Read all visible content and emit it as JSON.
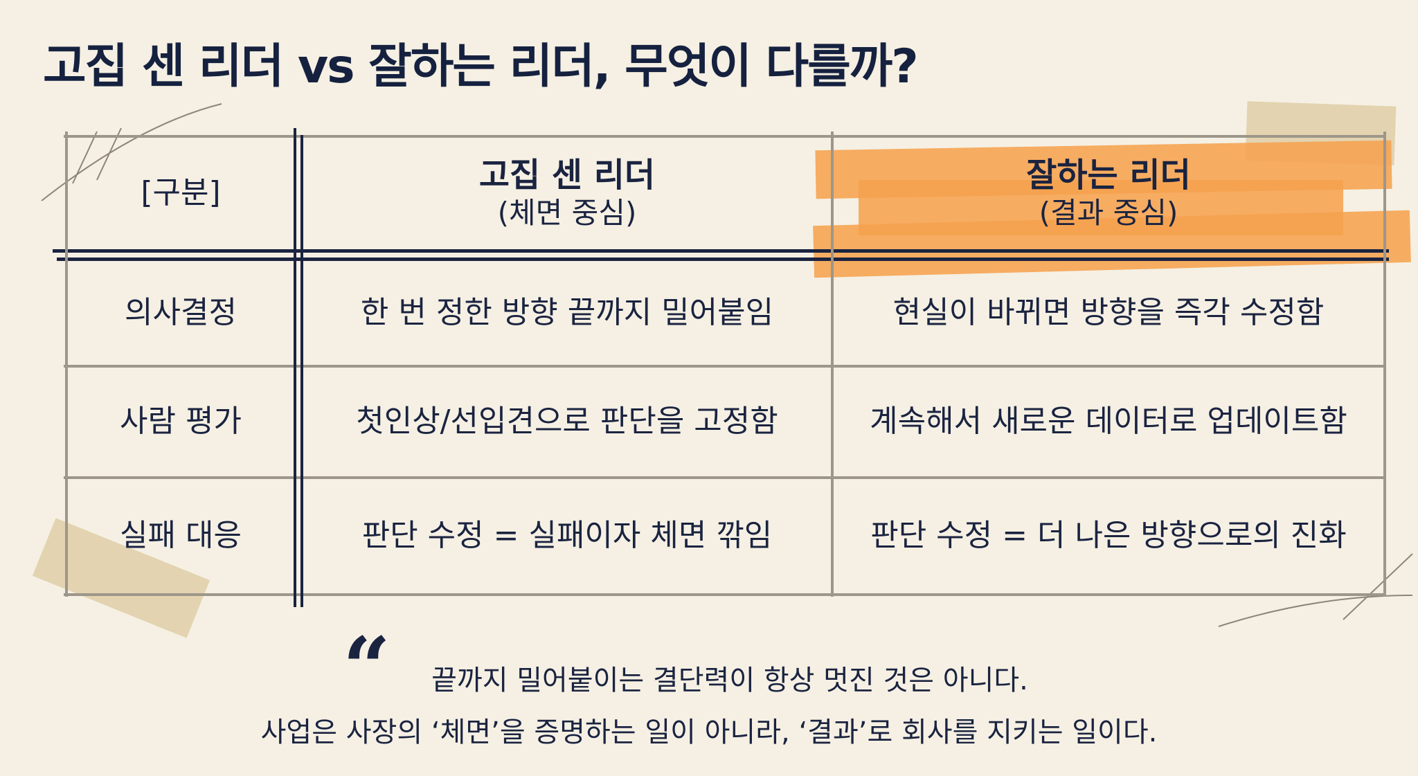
{
  "title": "고집 센 리더 vs 잘하는 리더, 무엇이 다를까?",
  "colors": {
    "background": "#f5f0e3",
    "text": "#1a2340",
    "highlight": "#f6a24e",
    "grid": "#9d968a",
    "tape": "#dcc69a"
  },
  "table": {
    "header": {
      "category": "[구분]",
      "col1_title": "고집 센 리더",
      "col1_sub": "(체면 중심)",
      "col2_title": "잘하는 리더",
      "col2_sub": "(결과 중심)"
    },
    "rows": [
      {
        "label": "의사결정",
        "stubborn": "한 번 정한 방향 끝까지 밀어붙임",
        "good": "현실이 바뀌면 방향을 즉각 수정함"
      },
      {
        "label": "사람 평가",
        "stubborn": "첫인상/선입견으로 판단을 고정함",
        "good": "계속해서 새로운 데이터로 업데이트함"
      },
      {
        "label": "실패 대응",
        "stubborn": "판단 수정 = 실패이자 체면 깎임",
        "good": "판단 수정 = 더 나은 방향으로의 진화"
      }
    ]
  },
  "quote": {
    "icon": "quote-mark-icon",
    "line1": "끝까지 밀어붙이는 결단력이 항상 멋진 것은 아니다.",
    "line2": "사업은 사장의 ‘체면’을 증명하는 일이 아니라, ‘결과’로 회사를 지키는 일이다."
  }
}
